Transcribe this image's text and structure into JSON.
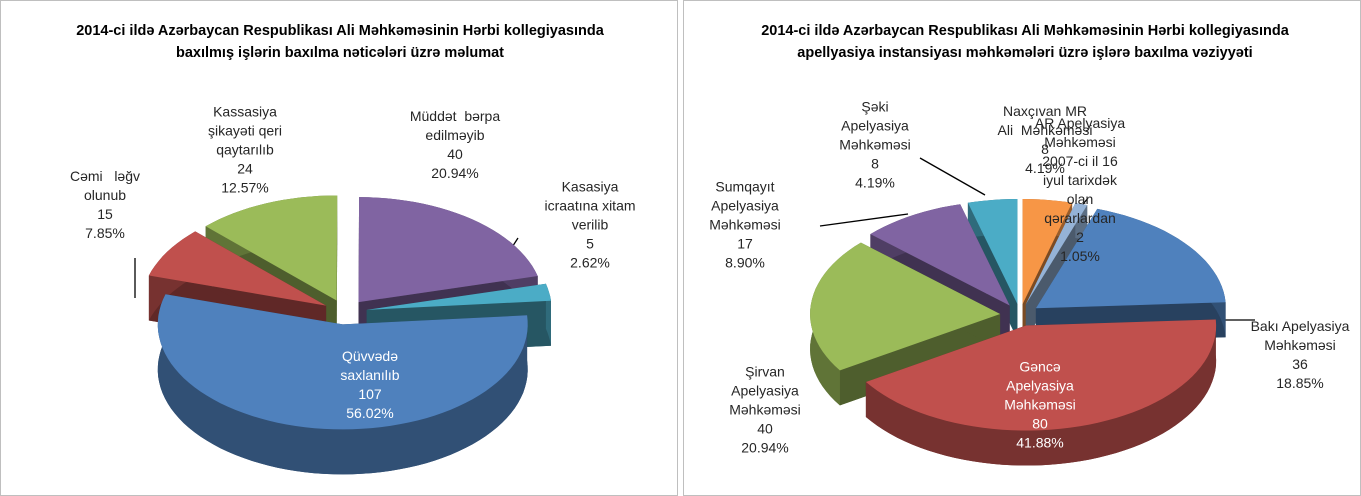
{
  "chart_data": [
    {
      "type": "pie3d",
      "title": "2014-ci ildə Azərbaycan Respublikası Ali Məhkəməsinin Hərbi kollegiyasında baxılmış işlərin baxılma nəticələri üzrə məlumat",
      "categories": [
        "Qüvvədə\nsaxlanılıb",
        "Cəmi   ləğv\nolunub",
        "Kassasiya\nşikayəti qeri\nqaytarılıb",
        "Müddət  bərpa\nedilməyib",
        "Kasasiya\nicraatına xitam\nverilib"
      ],
      "values": [
        107,
        15,
        24,
        40,
        5
      ],
      "percent_labels": [
        "56.02%",
        "7.85%",
        "12.57%",
        "20.94%",
        "2.62%"
      ],
      "colors": [
        "#4f81bd",
        "#c0504d",
        "#9bbb59",
        "#8064a2",
        "#4bacc6"
      ]
    },
    {
      "type": "pie3d",
      "title": "2014-ci ildə Azərbaycan Respublikası Ali Məhkəməsinin Hərbi kollegiyasında apellyasiya instansiyası məhkəmələri üzrə işlərə baxılma vəziyyəti",
      "categories": [
        "Naxçıvan MR\nAli  Məhkəməsi",
        "AR Apelyasiya\nMəhkəməsi\n2007-ci il 16\niyul tarixdək\nolan\nqərarlardan",
        "Bakı Apelyasiya\nMəhkəməsi",
        "Gəncə\nApelyasiya\nMəhkəməsi",
        "Şirvan\nApelyasiya\nMəhkəməsi",
        "Sumqayıt\nApelyasiya\nMəhkəməsi",
        "Şəki\nApelyasiya\nMəhkəməsi"
      ],
      "values": [
        8,
        2,
        36,
        80,
        40,
        17,
        8
      ],
      "percent_labels": [
        "4.19%",
        "1.05%",
        "18.85%",
        "41.88%",
        "20.94%",
        "8.90%",
        "4.19%"
      ],
      "colors": [
        "#f79646",
        "#95b3d7",
        "#4f81bd",
        "#c0504d",
        "#9bbb59",
        "#8064a2",
        "#4bacc6"
      ]
    }
  ]
}
